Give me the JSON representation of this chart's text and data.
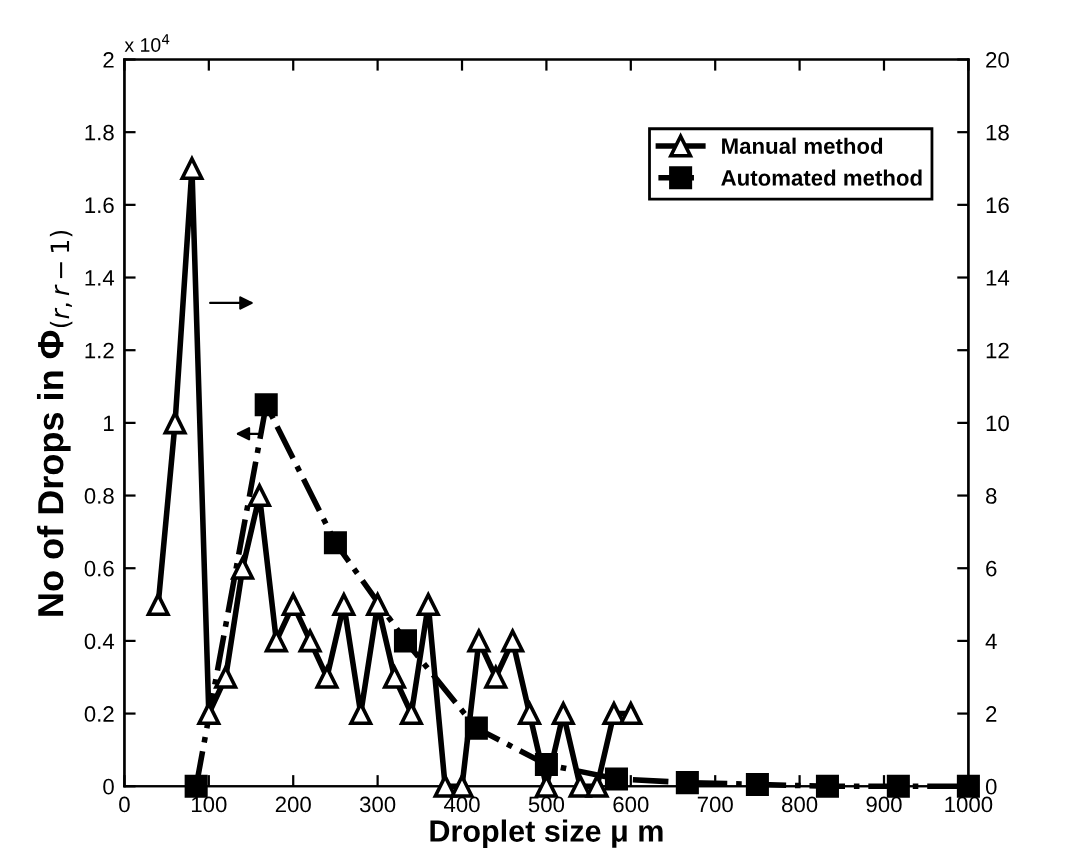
{
  "chart_data": {
    "type": "line",
    "xlabel": "Droplet size μ m",
    "ylabel": "No of Drops in Φ$_{(r,r−1)}$",
    "x": [
      40,
      60,
      80,
      100,
      120,
      140,
      160,
      180,
      200,
      220,
      240,
      260,
      280,
      300,
      320,
      340,
      360,
      380,
      400,
      420,
      440,
      460,
      480,
      500,
      520,
      540,
      560,
      580,
      600
    ],
    "series": [
      {
        "name": "Manual method",
        "color": "#000000",
        "axis": "y2",
        "marker": "triangle",
        "line_style": "solid",
        "values": [
          5,
          10,
          17,
          2,
          3,
          6,
          8,
          4,
          5,
          4,
          3,
          5,
          2,
          5,
          3,
          2,
          5,
          0,
          0,
          4,
          3,
          4,
          2,
          0,
          2,
          0,
          0,
          2,
          2
        ]
      },
      {
        "name": "Automated method",
        "color": "#000000",
        "marker": "square",
        "line_style": "dashdot",
        "x": [
          85,
          168,
          250,
          333,
          417,
          500,
          583,
          667,
          750,
          833,
          917,
          1000
        ],
        "values": [
          0,
          1.05,
          0.67,
          0.4,
          0.16,
          0.06,
          0.02,
          0.01,
          0.005,
          0,
          0,
          0
        ]
      }
    ],
    "xlim": [
      0,
      1000
    ],
    "xticks": [
      0,
      100,
      200,
      300,
      400,
      500,
      600,
      700,
      800,
      900,
      1000
    ],
    "ylim": [
      0,
      2
    ],
    "yticks": [
      0,
      0.2,
      0.4,
      0.6,
      0.8,
      1,
      1.2,
      1.4,
      1.6,
      1.8,
      2
    ],
    "y2lim": [
      0,
      20
    ],
    "y2ticks": [
      0,
      2,
      4,
      6,
      8,
      10,
      12,
      14,
      16,
      18,
      20
    ],
    "annotations": [
      "x 10$^{4}$"
    ],
    "grid": false,
    "legend": "top right"
  }
}
